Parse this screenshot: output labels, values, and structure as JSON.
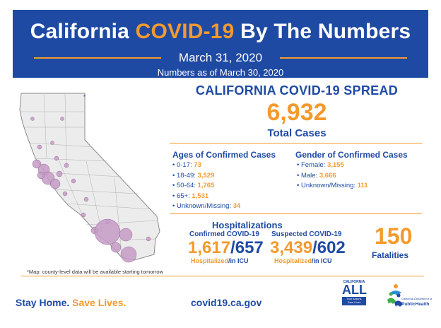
{
  "header": {
    "title_part1": "California ",
    "title_accent": "COVID-19",
    "title_part2": " By The Numbers",
    "date": "March 31, 2020",
    "subtitle": "Numbers as of March 30, 2020"
  },
  "map": {
    "note": "*Map: county-level data will be available starting tomorrow",
    "asterisk": "*"
  },
  "spread": {
    "title": "CALIFORNIA COVID-19 SPREAD",
    "total_cases": "6,932",
    "total_label": "Total Cases"
  },
  "ages": {
    "title": "Ages of Confirmed Cases",
    "items": [
      {
        "label": "0-17: ",
        "value": "73"
      },
      {
        "label": "18-49: ",
        "value": "3,529"
      },
      {
        "label": "50-64: ",
        "value": "1,765"
      },
      {
        "label": "65+: ",
        "value": "1,531"
      },
      {
        "label": "Unknown/Missing: ",
        "value": "34"
      }
    ]
  },
  "gender": {
    "title": "Gender of Confirmed Cases",
    "items": [
      {
        "label": "Female: ",
        "value": "3,155"
      },
      {
        "label": "Male: ",
        "value": "3,666"
      },
      {
        "label": "Unknown/Missing: ",
        "value": "111"
      }
    ]
  },
  "hospitalizations": {
    "title": "Hospitalizations",
    "confirmed": {
      "label": "Confirmed COVID-19",
      "hospitalized": "1,617",
      "sep": "/",
      "icu": "657",
      "foot_hosp": "Hospitalized",
      "foot_icu": "/in ICU"
    },
    "suspected": {
      "label": "Suspected COVID-19",
      "hospitalized": "3,439",
      "sep": "/",
      "icu": "602",
      "foot_hosp": "Hospitalized",
      "foot_icu": "/in ICU"
    }
  },
  "fatalities": {
    "value": "150",
    "label": "Fatalities"
  },
  "footer": {
    "slogan_part1": "Stay Home. ",
    "slogan_part2": "Save Lives.",
    "url": "covid19.ca.gov",
    "ca_all_top": "CALIFORNIA",
    "ca_all_big": "ALL",
    "ca_all_box_line1": "Your Actions",
    "ca_all_box_line2": "Save Lives",
    "cdph_small": "California Department of",
    "cdph_big": "PublicHealth"
  },
  "colors": {
    "brand_blue": "#1f4aa3",
    "accent_orange": "#f39a2e",
    "bubble_fill": "#c49bc6"
  }
}
